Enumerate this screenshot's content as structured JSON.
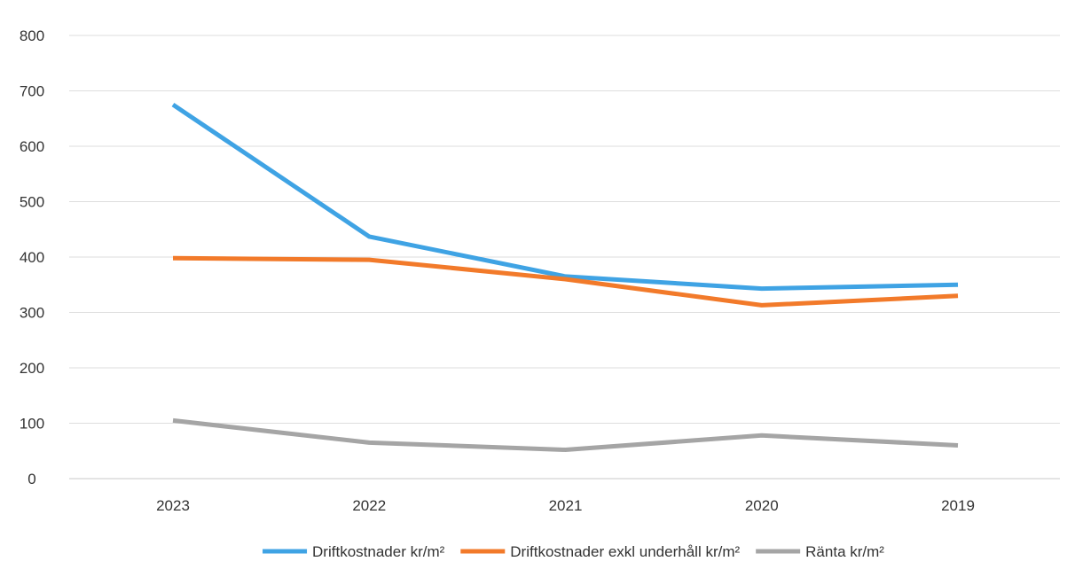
{
  "chart_data": {
    "type": "line",
    "title": "",
    "xlabel": "",
    "ylabel": "",
    "categories": [
      "2023",
      "2022",
      "2021",
      "2020",
      "2019"
    ],
    "ylim": [
      0,
      800
    ],
    "yticks": [
      0,
      100,
      200,
      300,
      400,
      500,
      600,
      700,
      800
    ],
    "grid": true,
    "legend_position": "bottom",
    "series": [
      {
        "name": "Driftkostnader kr/m²",
        "color": "#3fa3e4",
        "values": [
          675,
          437,
          365,
          343,
          350
        ]
      },
      {
        "name": "Driftkostnader exkl underhåll kr/m²",
        "color": "#f27a2a",
        "values": [
          398,
          395,
          360,
          313,
          330
        ]
      },
      {
        "name": "Ränta kr/m²",
        "color": "#a5a5a5",
        "values": [
          105,
          65,
          52,
          78,
          60
        ]
      }
    ]
  }
}
